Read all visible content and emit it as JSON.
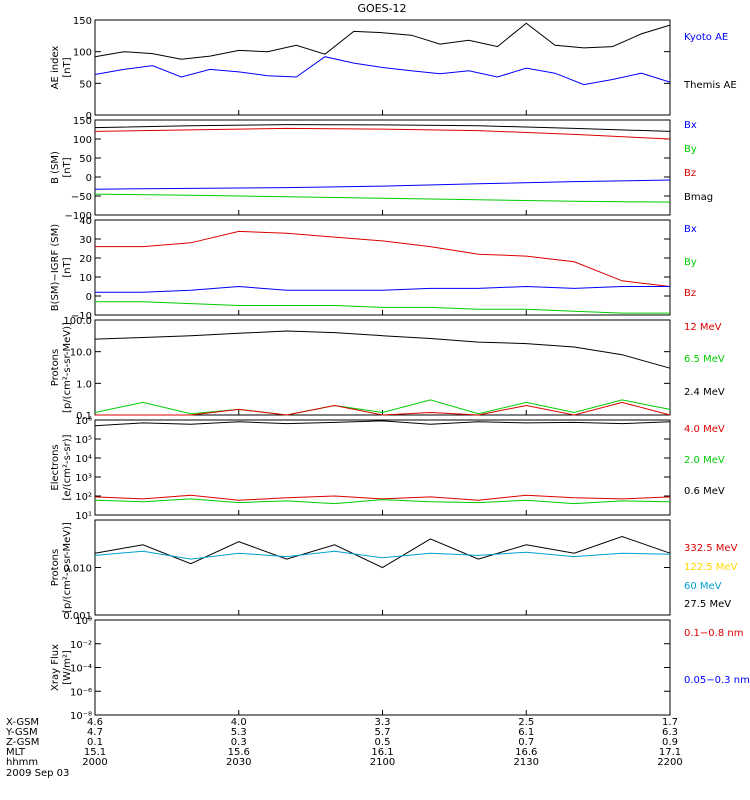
{
  "title": "GOES-12",
  "panels": [
    {
      "id": "ae",
      "ylabel": [
        "AE index",
        "[nT]"
      ],
      "ticks": [
        {
          "label": "150",
          "v": 150
        },
        {
          "label": "100",
          "v": 100
        },
        {
          "label": "50",
          "v": 50
        },
        {
          "label": "0",
          "v": 0
        }
      ],
      "legend": [
        {
          "text": "Kyoto AE",
          "color": "#0000ff"
        },
        {
          "text": "Themis AE",
          "color": "#000000"
        }
      ]
    },
    {
      "id": "bsm",
      "ylabel": [
        "B (SM)",
        "[nT]"
      ],
      "ticks": [
        {
          "label": "150",
          "v": 150
        },
        {
          "label": "100",
          "v": 100
        },
        {
          "label": "50",
          "v": 50
        },
        {
          "label": "0",
          "v": 0
        },
        {
          "label": "−50",
          "v": -50
        },
        {
          "label": "−100",
          "v": -100
        }
      ],
      "legend": [
        {
          "text": "Bx",
          "color": "#0000ff"
        },
        {
          "text": "By",
          "color": "#00cc00"
        },
        {
          "text": "Bz",
          "color": "#dd0000"
        },
        {
          "text": "Bmag",
          "color": "#000000"
        }
      ]
    },
    {
      "id": "bdiff",
      "ylabel": [
        "B(SM)−IGRF (SM)",
        "[nT]"
      ],
      "ticks": [
        {
          "label": "40",
          "v": 40
        },
        {
          "label": "30",
          "v": 30
        },
        {
          "label": "20",
          "v": 20
        },
        {
          "label": "10",
          "v": 10
        },
        {
          "label": "0",
          "v": 0
        },
        {
          "label": "−10",
          "v": -10
        }
      ],
      "legend": [
        {
          "text": "Bx",
          "color": "#0000ff"
        },
        {
          "text": "By",
          "color": "#00cc00"
        },
        {
          "text": "Bz",
          "color": "#dd0000"
        }
      ]
    },
    {
      "id": "protons_hi",
      "ylabel": [
        "Protons",
        "[p/(cm²-s-sr-MeV)]"
      ],
      "ticks": [
        {
          "label": "100.0",
          "v": 100
        },
        {
          "label": "10.0",
          "v": 10
        },
        {
          "label": "1.0",
          "v": 1
        },
        {
          "label": "0.1",
          "v": 0.1
        }
      ],
      "legend": [
        {
          "text": "12 MeV",
          "color": "#dd0000"
        },
        {
          "text": "6.5 MeV",
          "color": "#00cc00"
        },
        {
          "text": "2.4 MeV",
          "color": "#000000"
        }
      ]
    },
    {
      "id": "electrons",
      "ylabel": [
        "Electrons",
        "[e/(cm²-s-sr)]"
      ],
      "ticks": [
        {
          "label": "10⁶",
          "v": 1000000
        },
        {
          "label": "10⁵",
          "v": 100000
        },
        {
          "label": "10⁴",
          "v": 10000
        },
        {
          "label": "10³",
          "v": 1000
        },
        {
          "label": "10²",
          "v": 100
        },
        {
          "label": "10¹",
          "v": 10
        }
      ],
      "legend": [
        {
          "text": "4.0 MeV",
          "color": "#dd0000"
        },
        {
          "text": "2.0 MeV",
          "color": "#00cc00"
        },
        {
          "text": "0.6 MeV",
          "color": "#000000"
        }
      ]
    },
    {
      "id": "protons_lo",
      "ylabel": [
        "Protons",
        "[p/(cm²-s-sr-MeV)]"
      ],
      "ticks": [
        {
          "label": "0.010",
          "v": 0.01
        },
        {
          "label": "0.001",
          "v": 0.001
        }
      ],
      "legend": [
        {
          "text": "332.5 MeV",
          "color": "#dd0000"
        },
        {
          "text": "122.5 MeV",
          "color": "#ffd700"
        },
        {
          "text": "60 MeV",
          "color": "#00a0d0"
        },
        {
          "text": "27.5 MeV",
          "color": "#000000"
        }
      ]
    },
    {
      "id": "xray",
      "ylabel": [
        "Xray Flux",
        "[W/m²]"
      ],
      "ticks": [
        {
          "label": "10⁰",
          "v": 1
        },
        {
          "label": "10⁻²",
          "v": 0.01
        },
        {
          "label": "10⁻⁴",
          "v": 0.0001
        },
        {
          "label": "10⁻⁶",
          "v": 1e-06
        },
        {
          "label": "10⁻⁸",
          "v": 1e-08
        }
      ],
      "legend": [
        {
          "text": "0.1−0.8 nm",
          "color": "#dd0000"
        },
        {
          "text": "0.05−0.3 nm",
          "color": "#0000ff"
        }
      ]
    }
  ],
  "footer": {
    "rows": [
      {
        "label": "X-GSM",
        "values": [
          "4.6",
          "4.0",
          "3.3",
          "2.5",
          "1.7"
        ]
      },
      {
        "label": "Y-GSM",
        "values": [
          "4.7",
          "5.3",
          "5.7",
          "6.1",
          "6.3"
        ]
      },
      {
        "label": "Z-GSM",
        "values": [
          "0.1",
          "0.3",
          "0.5",
          "0.7",
          "0.9"
        ]
      },
      {
        "label": "MLT",
        "values": [
          "15.1",
          "15.6",
          "16.1",
          "16.6",
          "17.1"
        ]
      },
      {
        "label": "hhmm",
        "values": [
          "2000",
          "2030",
          "2100",
          "2130",
          "2200"
        ]
      }
    ],
    "date": "2009 Sep 03"
  },
  "chart_data": [
    {
      "type": "line",
      "title": "GOES-12",
      "ylabel": "AE index [nT]",
      "ylim": [
        0,
        150
      ],
      "x": [
        0,
        6,
        12,
        18,
        24,
        30,
        36,
        42,
        48,
        54,
        60,
        66,
        72,
        78,
        84,
        90,
        96,
        102,
        108,
        114,
        120
      ],
      "series": [
        {
          "name": "Themis AE",
          "color": "#000000",
          "values": [
            92,
            100,
            97,
            88,
            93,
            102,
            100,
            110,
            96,
            132,
            130,
            126,
            112,
            118,
            108,
            145,
            110,
            106,
            108,
            128,
            142
          ]
        },
        {
          "name": "Kyoto AE",
          "color": "#0000ff",
          "values": [
            64,
            72,
            78,
            60,
            72,
            68,
            62,
            60,
            92,
            82,
            75,
            70,
            65,
            70,
            60,
            74,
            66,
            48,
            56,
            66,
            52
          ]
        }
      ]
    },
    {
      "type": "line",
      "ylabel": "B (SM) [nT]",
      "ylim": [
        -100,
        150
      ],
      "x": [
        0,
        20,
        40,
        60,
        80,
        100,
        120
      ],
      "series": [
        {
          "name": "Bmag",
          "color": "#000000",
          "values": [
            130,
            135,
            138,
            137,
            135,
            128,
            120
          ]
        },
        {
          "name": "Bz",
          "color": "#dd0000",
          "values": [
            120,
            124,
            128,
            126,
            122,
            112,
            100
          ]
        },
        {
          "name": "Bx",
          "color": "#0000ff",
          "values": [
            -32,
            -30,
            -28,
            -24,
            -18,
            -12,
            -8
          ]
        },
        {
          "name": "By",
          "color": "#00cc00",
          "values": [
            -45,
            -48,
            -52,
            -56,
            -60,
            -64,
            -66
          ]
        }
      ]
    },
    {
      "type": "line",
      "ylabel": "B(SM)-IGRF (SM) [nT]",
      "ylim": [
        -10,
        40
      ],
      "x": [
        0,
        10,
        20,
        30,
        40,
        50,
        60,
        70,
        80,
        90,
        100,
        110,
        120
      ],
      "series": [
        {
          "name": "Bz",
          "color": "#dd0000",
          "values": [
            26,
            26,
            28,
            34,
            33,
            31,
            29,
            26,
            22,
            21,
            18,
            8,
            5
          ]
        },
        {
          "name": "Bx",
          "color": "#0000ff",
          "values": [
            2,
            2,
            3,
            5,
            3,
            3,
            3,
            4,
            4,
            5,
            4,
            5,
            5
          ]
        },
        {
          "name": "By",
          "color": "#00cc00",
          "values": [
            -3,
            -3,
            -4,
            -5,
            -5,
            -5,
            -6,
            -6,
            -7,
            -7,
            -8,
            -9,
            -9
          ]
        }
      ]
    },
    {
      "type": "line",
      "ylabel": "Protons [p/(cm2-s-sr-MeV)]",
      "scale": "log",
      "ylim": [
        0.1,
        100
      ],
      "x": [
        0,
        10,
        20,
        30,
        40,
        50,
        60,
        70,
        80,
        90,
        100,
        110,
        120
      ],
      "series": [
        {
          "name": "2.4 MeV",
          "color": "#000000",
          "values": [
            25,
            28,
            32,
            38,
            45,
            40,
            32,
            26,
            20,
            18,
            14,
            8,
            3
          ]
        },
        {
          "name": "6.5 MeV",
          "color": "#00cc00",
          "values": [
            0.12,
            0.25,
            0.11,
            0.15,
            0.1,
            0.2,
            0.12,
            0.3,
            0.11,
            0.25,
            0.12,
            0.3,
            0.15
          ]
        },
        {
          "name": "12 MeV",
          "color": "#dd0000",
          "values": [
            0.1,
            0.1,
            0.1,
            0.15,
            0.1,
            0.2,
            0.1,
            0.12,
            0.1,
            0.2,
            0.1,
            0.25,
            0.1
          ]
        }
      ]
    },
    {
      "type": "line",
      "ylabel": "Electrons [e/(cm2-s-sr)]",
      "scale": "log",
      "ylim": [
        10,
        1000000
      ],
      "x": [
        0,
        10,
        20,
        30,
        40,
        50,
        60,
        70,
        80,
        90,
        100,
        110,
        120
      ],
      "series": [
        {
          "name": "0.6 MeV",
          "color": "#000000",
          "values": [
            500000,
            700000,
            600000,
            800000,
            650000,
            750000,
            900000,
            600000,
            800000,
            700000,
            750000,
            650000,
            800000
          ]
        },
        {
          "name": "4.0 MeV",
          "color": "#dd0000",
          "values": [
            90,
            70,
            110,
            60,
            80,
            100,
            70,
            90,
            60,
            110,
            80,
            70,
            90
          ]
        },
        {
          "name": "2.0 MeV",
          "color": "#00cc00",
          "values": [
            60,
            50,
            70,
            45,
            55,
            40,
            65,
            50,
            45,
            60,
            40,
            55,
            50
          ]
        }
      ]
    },
    {
      "type": "line",
      "ylabel": "Protons [p/(cm2-s-sr-MeV)]",
      "scale": "log",
      "ylim": [
        0.001,
        0.1
      ],
      "x": [
        0,
        10,
        20,
        30,
        40,
        50,
        60,
        70,
        80,
        90,
        100,
        110,
        120
      ],
      "series": [
        {
          "name": "27.5 MeV",
          "color": "#000000",
          "values": [
            0.02,
            0.03,
            0.012,
            0.035,
            0.015,
            0.03,
            0.01,
            0.04,
            0.015,
            0.03,
            0.02,
            0.045,
            0.02
          ]
        },
        {
          "name": "60 MeV",
          "color": "#00a0d0",
          "values": [
            0.018,
            0.022,
            0.015,
            0.02,
            0.017,
            0.022,
            0.016,
            0.02,
            0.018,
            0.021,
            0.017,
            0.02,
            0.019
          ]
        }
      ]
    },
    {
      "type": "line",
      "ylabel": "Xray Flux [W/m2]",
      "scale": "log",
      "ylim": [
        1e-08,
        1
      ],
      "series": []
    }
  ]
}
